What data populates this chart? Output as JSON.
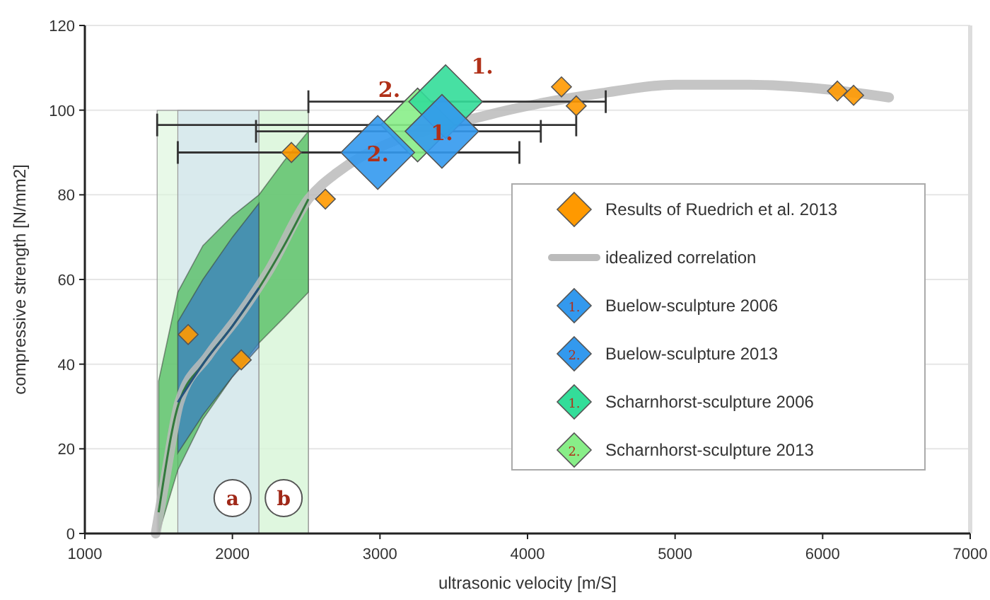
{
  "chart_data": {
    "type": "scatter",
    "xlabel": "ultrasonic velocity [m/S]",
    "ylabel": "compressive strength [N/mm2]",
    "xlim": [
      1000,
      7000
    ],
    "ylim": [
      0,
      120
    ],
    "xticks": [
      1000,
      2000,
      3000,
      4000,
      5000,
      6000,
      7000
    ],
    "yticks": [
      0,
      20,
      40,
      60,
      80,
      100,
      120
    ],
    "grid": "y",
    "legend": "right",
    "bands": [
      {
        "axis": "x",
        "from": 1490,
        "to": 2515,
        "color": "#d8f5d8"
      },
      {
        "axis": "x",
        "from": 1630,
        "to": 2180,
        "label": "a",
        "color": "#cfe0f0"
      },
      {
        "axis": "x",
        "from": 2180,
        "to": 2515,
        "label": "b",
        "color": "#d8f5d8"
      }
    ],
    "annotations": [
      {
        "text": "1.",
        "x": 3420,
        "y": 95
      },
      {
        "text": "2.",
        "x": 2985,
        "y": 90
      },
      {
        "text": "1.",
        "x": 3445,
        "y": 102
      },
      {
        "text": "2.",
        "x": 3255,
        "y": 96.5
      }
    ],
    "series": [
      {
        "type": "line",
        "color": "#327a3c",
        "x": [
          1500,
          1630,
          1800,
          2000,
          2180,
          2350,
          2515
        ],
        "values": [
          5,
          30,
          40,
          49,
          58,
          68,
          79
        ],
        "lower": [
          0,
          15,
          27,
          37,
          45,
          51,
          57
        ],
        "upper": [
          36,
          57,
          68,
          75,
          80,
          88,
          95
        ]
      },
      {
        "type": "line",
        "color": "#26537d",
        "x": [
          1630,
          1800,
          2000,
          2180
        ],
        "values": [
          31,
          40,
          49,
          58
        ],
        "lower": [
          19,
          28,
          37,
          44
        ],
        "upper": [
          50,
          60,
          70,
          78
        ]
      },
      {
        "name": "Results of Ruedrich et al. 2013",
        "marker": "diamond",
        "color": "#ff9900",
        "x": [
          1700,
          2060,
          2400,
          2630,
          4230,
          4330,
          6100,
          6210
        ],
        "values": [
          47,
          41,
          90,
          79,
          105.5,
          101,
          104.5,
          103.5
        ]
      },
      {
        "type": "line",
        "name": "idealized correlation",
        "color": "#bbbbbb",
        "x": [
          1480,
          1545,
          1640,
          1835,
          2055,
          2245,
          2515,
          2700,
          3750,
          4000,
          4500,
          5000,
          5500,
          6000,
          6450
        ],
        "values": [
          0,
          13,
          31,
          42,
          52,
          62,
          79,
          85,
          99,
          101,
          104,
          106,
          106,
          105,
          103
        ]
      },
      {
        "type": "bubble",
        "name": "Buelow-sculpture 2006",
        "marker": "diamond",
        "color": "#3399ee",
        "x": [
          3420
        ],
        "values": [
          95
        ],
        "sizes": [
          1
        ],
        "xerrors": [
          [
            2160,
            4090
          ]
        ]
      },
      {
        "type": "bubble",
        "name": "Buelow-sculpture 2013",
        "marker": "diamond",
        "color": "#3399ee",
        "x": [
          2985
        ],
        "values": [
          90
        ],
        "sizes": [
          1
        ],
        "xerrors": [
          [
            1630,
            3945
          ]
        ]
      },
      {
        "type": "bubble",
        "name": "Scharnhorst-sculpture 2006",
        "marker": "diamond",
        "color": "#33dd99",
        "x": [
          3445
        ],
        "values": [
          102
        ],
        "sizes": [
          1
        ],
        "xerrors": [
          [
            2515,
            4530
          ]
        ]
      },
      {
        "type": "bubble",
        "name": "Scharnhorst-sculpture 2013",
        "marker": "diamond",
        "color": "#88ee88",
        "x": [
          3255
        ],
        "values": [
          96.5
        ],
        "sizes": [
          1
        ],
        "xerrors": [
          [
            1490,
            4330
          ]
        ]
      }
    ]
  }
}
